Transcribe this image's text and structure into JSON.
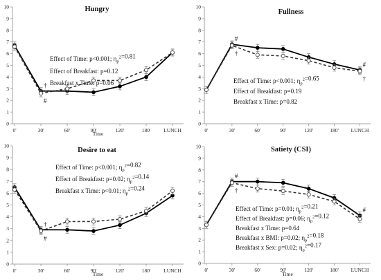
{
  "chart_data": [
    {
      "type": "line",
      "title": "Hungry",
      "xlabel": "Time",
      "ylabel": "",
      "ylim": [
        0,
        10
      ],
      "yticks": [
        "0",
        "1",
        "2",
        "3",
        "4",
        "5",
        "6",
        "7",
        "8",
        "9",
        "10"
      ],
      "categories": [
        "0'",
        "30'",
        "60'",
        "90'",
        "120'",
        "180'",
        "LUNCH"
      ],
      "series": [
        {
          "style": "solid",
          "values": [
            6.7,
            2.8,
            2.8,
            2.7,
            3.2,
            4.0,
            6.1
          ]
        },
        {
          "style": "dashed",
          "values": [
            6.6,
            2.6,
            3.0,
            3.7,
            3.7,
            4.6,
            6.1
          ]
        }
      ],
      "annotations": [
        "Effect of Time: p<0.001; ηp²=0.81",
        "Effect of Breakfast: p=0.12",
        "Breakfast x Time: p=0.06"
      ],
      "markers": [
        {
          "symbol": "†",
          "x": 1,
          "pos": "above"
        },
        {
          "symbol": "#",
          "x": 1,
          "pos": "below"
        }
      ]
    },
    {
      "type": "line",
      "title": "Fullness",
      "xlabel": "",
      "ylabel": "",
      "ylim": [
        0,
        10
      ],
      "yticks": [
        "0",
        "1",
        "2",
        "3",
        "4",
        "5",
        "6",
        "7",
        "8",
        "9",
        "10"
      ],
      "categories": [
        "0'",
        "30'",
        "60'",
        "90'",
        "120'",
        "180'",
        "LUNCH"
      ],
      "series": [
        {
          "style": "solid",
          "values": [
            2.9,
            6.8,
            6.5,
            6.4,
            5.7,
            5.1,
            4.6
          ]
        },
        {
          "style": "dashed",
          "values": [
            2.9,
            6.7,
            5.9,
            5.8,
            5.4,
            4.8,
            4.5
          ]
        }
      ],
      "annotations": [
        "Effect of Time: p<0.001; ηp²=0.65",
        "Effect of Breakfast: p=0.19",
        "Breakfast x Time: p=0.82"
      ],
      "markers": [
        {
          "symbol": "#",
          "x": 1,
          "pos": "above"
        },
        {
          "symbol": "†",
          "x": 1,
          "pos": "below"
        },
        {
          "symbol": "#",
          "x": 6,
          "pos": "above"
        },
        {
          "symbol": "†",
          "x": 6,
          "pos": "below"
        }
      ]
    },
    {
      "type": "line",
      "title": "Desire to eat",
      "xlabel": "Time",
      "ylabel": "",
      "ylim": [
        0,
        10
      ],
      "yticks": [
        "0",
        "1",
        "2",
        "3",
        "4",
        "5",
        "6",
        "7",
        "8",
        "9",
        "10"
      ],
      "categories": [
        "0'",
        "30'",
        "60'",
        "90'",
        "120'",
        "180'",
        "LUNCH"
      ],
      "series": [
        {
          "style": "solid",
          "values": [
            6.5,
            2.9,
            2.9,
            2.8,
            3.3,
            4.3,
            5.8
          ]
        },
        {
          "style": "dashed",
          "values": [
            6.3,
            2.8,
            3.6,
            3.6,
            3.8,
            4.5,
            6.2
          ]
        }
      ],
      "annotations": [
        "Effect of Time: p<0.001; ηp²=0.82",
        "Effect of Breakfast: p=0.02; ηp²=0.14",
        "Breakfast x Time: p<0.01; ηp²=0.24"
      ],
      "markers": [
        {
          "symbol": "†",
          "x": 1,
          "pos": "above"
        },
        {
          "symbol": "#",
          "x": 1,
          "pos": "below"
        }
      ]
    },
    {
      "type": "line",
      "title": "Satiety (CSI)",
      "xlabel": "Time",
      "ylabel": "",
      "ylim": [
        0,
        10
      ],
      "yticks": [
        "0",
        "1",
        "2",
        "3",
        "4",
        "5",
        "6",
        "7",
        "8",
        "9",
        "10"
      ],
      "categories": [
        "0'",
        "30'",
        "60'",
        "90'",
        "120'",
        "180'",
        "LUNCH"
      ],
      "series": [
        {
          "style": "solid",
          "values": [
            3.3,
            7.0,
            7.0,
            6.9,
            6.4,
            5.6,
            4.1
          ]
        },
        {
          "style": "dashed",
          "values": [
            3.3,
            6.9,
            6.4,
            6.2,
            5.9,
            5.3,
            3.8
          ]
        }
      ],
      "annotations": [
        "Effect of Time: p=0.01; ηp²=0.21",
        "Effect of Breakfast: p=0.06; ηp²=0.12",
        "Breakfast x Time: p=0.64",
        "Breakfast x BMI: p=0.02; ηp²=0.18",
        "Breakfast x Sex: p=0.02; ηp²=0.17"
      ],
      "markers": [
        {
          "symbol": "#",
          "x": 1,
          "pos": "above"
        },
        {
          "symbol": "†",
          "x": 1,
          "pos": "below"
        },
        {
          "symbol": "#",
          "x": 6,
          "pos": "above"
        }
      ]
    }
  ]
}
